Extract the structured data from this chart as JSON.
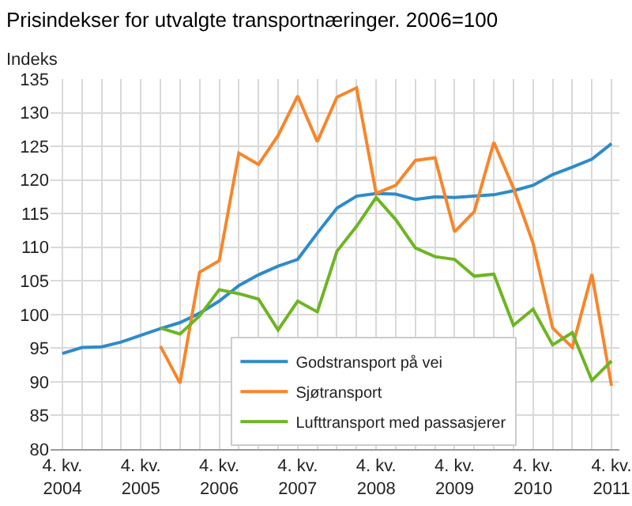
{
  "chart_data": {
    "type": "line",
    "title": "Prisindekser for utvalgte transportnæringer. 2006=100",
    "ylabel": "Indeks",
    "categories": [
      "4. kv. 2004",
      null,
      null,
      null,
      "4. kv. 2005",
      null,
      null,
      null,
      "4. kv. 2006",
      null,
      null,
      null,
      "4. kv. 2007",
      null,
      null,
      null,
      "4. kv. 2008",
      null,
      null,
      null,
      "4. kv. 2009",
      null,
      null,
      null,
      "4. kv. 2010",
      null,
      null,
      null,
      "4. kv. 2011"
    ],
    "series": [
      {
        "name": "Godstransport på vei",
        "color": "#2e8bc9",
        "values": [
          94.2,
          95.1,
          95.2,
          95.9,
          96.9,
          97.9,
          98.8,
          100.2,
          102.0,
          104.3,
          105.9,
          107.2,
          108.2,
          112.1,
          115.8,
          117.6,
          118.0,
          117.9,
          117.1,
          117.5,
          117.4,
          117.6,
          117.8,
          118.4,
          119.2,
          120.8,
          121.9,
          123.1,
          125.4
        ]
      },
      {
        "name": "Sjøtransport",
        "color": "#f7862a",
        "values": [
          null,
          null,
          null,
          null,
          null,
          95.3,
          89.8,
          106.3,
          108.0,
          124.0,
          122.3,
          126.6,
          132.5,
          125.7,
          132.3,
          133.7,
          118.0,
          119.2,
          122.9,
          123.3,
          112.3,
          115.3,
          125.6,
          118.8,
          110.6,
          98.0,
          95.1,
          106.0,
          89.4
        ]
      },
      {
        "name": "Lufttransport med passasjerer",
        "color": "#6db523",
        "values": [
          null,
          null,
          null,
          null,
          null,
          98.0,
          97.1,
          99.8,
          103.7,
          103.1,
          102.3,
          97.7,
          102.0,
          100.4,
          109.4,
          113.1,
          117.4,
          114.1,
          109.9,
          108.6,
          108.2,
          105.7,
          106.0,
          98.4,
          100.8,
          95.5,
          97.3,
          90.2,
          93.1
        ]
      }
    ],
    "ylim": [
      80,
      135
    ],
    "yticks": [
      80,
      85,
      90,
      95,
      100,
      105,
      110,
      115,
      120,
      125,
      130,
      135
    ],
    "grid": true,
    "legend": "bottom right",
    "marker": "none",
    "line_style": "solid"
  }
}
